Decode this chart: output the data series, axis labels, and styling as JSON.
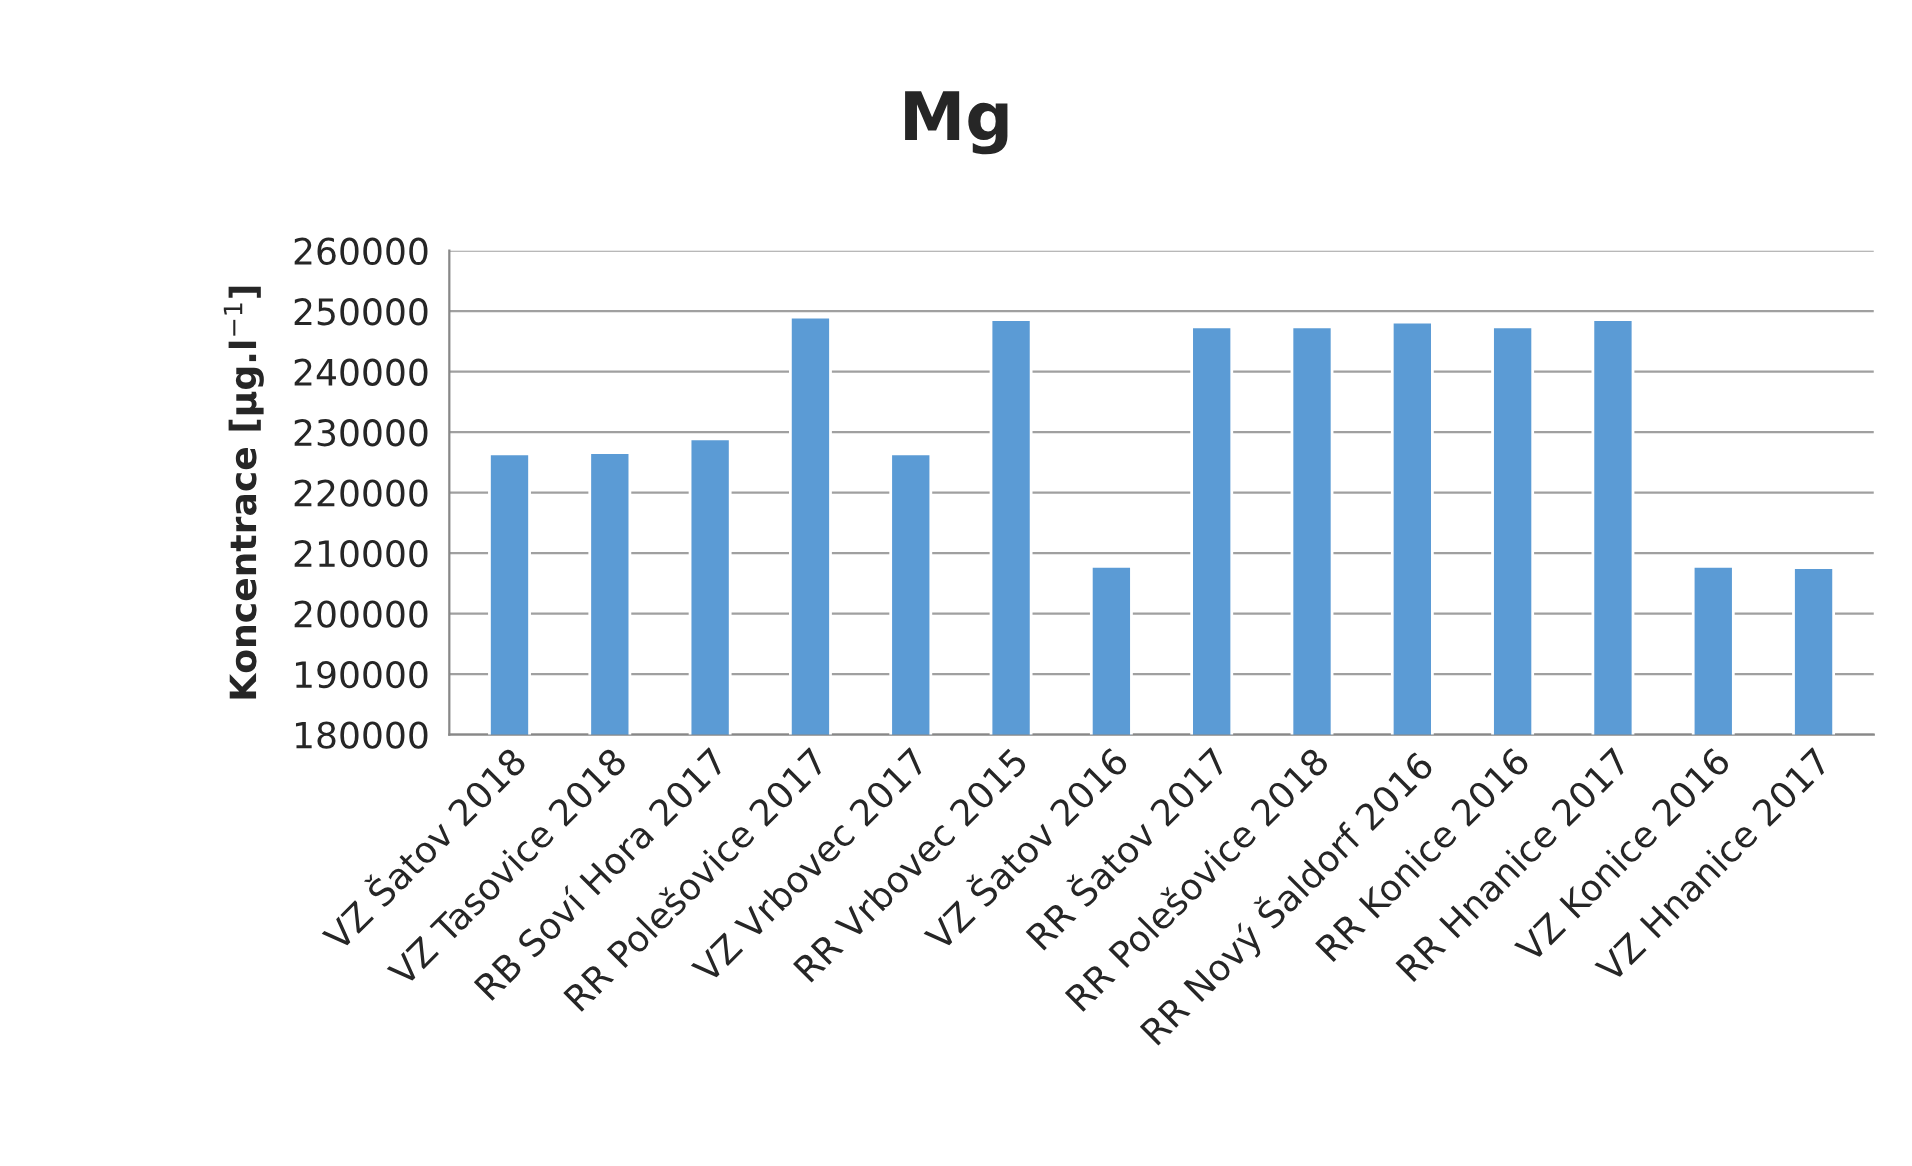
{
  "chart_data": {
    "type": "bar",
    "title": "Mg",
    "ylabel": "Koncentrace [µg.l$^{−1}$]",
    "categories": [
      "VZ Šatov 2018",
      "VZ Tasovice 2018",
      "RB Soví Hora 2017",
      "RR Polešovice 2017",
      "VZ Vrbovec 2017",
      "RR Vrbovec 2015",
      "VZ Šatov 2016",
      "RR Šatov 2017",
      "RR Polešovice 2018",
      "RR Nový Šaldorf 2016",
      "RR Konice 2016",
      "RR Hnanice 2017",
      "VZ Konice 2016",
      "VZ Hnanice 2017"
    ],
    "values": [
      226400,
      226600,
      228900,
      249000,
      226400,
      248600,
      207800,
      247400,
      247400,
      248200,
      247400,
      248600,
      207800,
      207600
    ],
    "color": "#5b9bd5",
    "ylim": [
      180000,
      260000
    ],
    "yticks": [
      180000,
      190000,
      200000,
      210000,
      220000,
      230000,
      240000,
      250000,
      260000
    ],
    "grid": "y",
    "legend": false
  }
}
